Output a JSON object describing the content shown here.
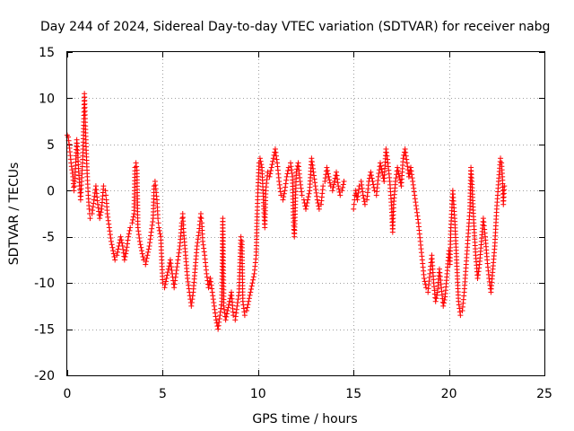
{
  "chart_data": {
    "type": "scatter",
    "title": "Day 244 of 2024, Sidereal Day-to-day VTEC variation (SDTVAR) for receiver nabg",
    "xlabel": "GPS time / hours",
    "ylabel": "SDTVAR / TECUs",
    "xlim": [
      0,
      25
    ],
    "ylim": [
      -20,
      15
    ],
    "xticks": [
      0,
      5,
      10,
      15,
      20,
      25
    ],
    "yticks": [
      -20,
      -15,
      -10,
      -5,
      0,
      5,
      10,
      15
    ],
    "xtick_labels": [
      "0",
      "5",
      "10",
      "15",
      "20",
      "25"
    ],
    "ytick_labels": [
      "-20",
      "-15",
      "-10",
      "-5",
      "0",
      "5",
      "10",
      "15"
    ],
    "grid": true,
    "marker": "+",
    "series": [
      {
        "name": "SDTVAR",
        "color": "#ff0000",
        "points": [
          [
            0.0,
            6.0
          ],
          [
            0.05,
            5.8
          ],
          [
            0.1,
            5.0
          ],
          [
            0.2,
            3.0
          ],
          [
            0.3,
            1.5
          ],
          [
            0.35,
            0.0
          ],
          [
            0.4,
            1.0
          ],
          [
            0.5,
            5.5
          ],
          [
            0.55,
            4.0
          ],
          [
            0.6,
            2.0
          ],
          [
            0.65,
            0.5
          ],
          [
            0.7,
            -1.0
          ],
          [
            0.75,
            1.0
          ],
          [
            0.8,
            3.0
          ],
          [
            0.85,
            6.0
          ],
          [
            0.88,
            8.5
          ],
          [
            0.9,
            10.5
          ],
          [
            0.92,
            9.0
          ],
          [
            0.95,
            7.0
          ],
          [
            1.0,
            4.0
          ],
          [
            1.05,
            1.5
          ],
          [
            1.1,
            -0.5
          ],
          [
            1.15,
            -2.0
          ],
          [
            1.2,
            -3.0
          ],
          [
            1.3,
            -2.5
          ],
          [
            1.4,
            -1.0
          ],
          [
            1.5,
            0.5
          ],
          [
            1.6,
            -1.5
          ],
          [
            1.7,
            -3.0
          ],
          [
            1.8,
            -2.0
          ],
          [
            1.9,
            0.5
          ],
          [
            2.0,
            0.0
          ],
          [
            2.05,
            -1.0
          ],
          [
            2.1,
            -2.5
          ],
          [
            2.2,
            -4.0
          ],
          [
            2.3,
            -5.5
          ],
          [
            2.4,
            -6.5
          ],
          [
            2.5,
            -7.5
          ],
          [
            2.6,
            -7.0
          ],
          [
            2.7,
            -6.0
          ],
          [
            2.8,
            -5.0
          ],
          [
            2.9,
            -6.0
          ],
          [
            3.0,
            -7.5
          ],
          [
            3.1,
            -6.5
          ],
          [
            3.2,
            -5.0
          ],
          [
            3.3,
            -4.0
          ],
          [
            3.4,
            -3.5
          ],
          [
            3.5,
            -2.5
          ],
          [
            3.55,
            2.5
          ],
          [
            3.6,
            3.0
          ],
          [
            3.65,
            2.2
          ],
          [
            3.7,
            -4.0
          ],
          [
            3.8,
            -5.5
          ],
          [
            3.9,
            -6.5
          ],
          [
            4.0,
            -7.5
          ],
          [
            4.1,
            -8.0
          ],
          [
            4.2,
            -7.0
          ],
          [
            4.3,
            -6.0
          ],
          [
            4.4,
            -4.5
          ],
          [
            4.5,
            -3.0
          ],
          [
            4.55,
            0.5
          ],
          [
            4.6,
            1.0
          ],
          [
            4.7,
            -1.0
          ],
          [
            4.75,
            -3.0
          ],
          [
            4.8,
            -4.0
          ],
          [
            4.9,
            -5.0
          ],
          [
            5.0,
            -10.0
          ],
          [
            5.1,
            -10.5
          ],
          [
            5.2,
            -9.5
          ],
          [
            5.3,
            -8.5
          ],
          [
            5.4,
            -7.5
          ],
          [
            5.5,
            -9.0
          ],
          [
            5.6,
            -10.5
          ],
          [
            5.7,
            -9.0
          ],
          [
            5.8,
            -7.5
          ],
          [
            5.9,
            -6.0
          ],
          [
            6.0,
            -3.5
          ],
          [
            6.05,
            -2.5
          ],
          [
            6.1,
            -4.5
          ],
          [
            6.2,
            -7.0
          ],
          [
            6.3,
            -9.5
          ],
          [
            6.4,
            -11.0
          ],
          [
            6.5,
            -12.5
          ],
          [
            6.6,
            -11.0
          ],
          [
            6.7,
            -8.5
          ],
          [
            6.8,
            -6.0
          ],
          [
            6.9,
            -4.5
          ],
          [
            7.0,
            -2.5
          ],
          [
            7.05,
            -3.5
          ],
          [
            7.1,
            -5.5
          ],
          [
            7.2,
            -7.0
          ],
          [
            7.3,
            -9.0
          ],
          [
            7.4,
            -10.5
          ],
          [
            7.5,
            -9.5
          ],
          [
            7.6,
            -11.0
          ],
          [
            7.7,
            -12.5
          ],
          [
            7.8,
            -14.0
          ],
          [
            7.9,
            -15.0
          ],
          [
            8.0,
            -13.5
          ],
          [
            8.1,
            -12.0
          ],
          [
            8.15,
            -3.0
          ],
          [
            8.2,
            -12.5
          ],
          [
            8.3,
            -14.0
          ],
          [
            8.4,
            -13.0
          ],
          [
            8.5,
            -12.0
          ],
          [
            8.6,
            -11.0
          ],
          [
            8.7,
            -13.5
          ],
          [
            8.8,
            -14.0
          ],
          [
            8.9,
            -12.5
          ],
          [
            9.0,
            -11.0
          ],
          [
            9.1,
            -5.0
          ],
          [
            9.15,
            -5.5
          ],
          [
            9.2,
            -12.0
          ],
          [
            9.3,
            -13.5
          ],
          [
            9.4,
            -13.0
          ],
          [
            9.5,
            -12.0
          ],
          [
            9.6,
            -11.0
          ],
          [
            9.7,
            -10.0
          ],
          [
            9.8,
            -9.0
          ],
          [
            9.9,
            -7.0
          ],
          [
            9.95,
            -2.5
          ],
          [
            10.0,
            0.5
          ],
          [
            10.05,
            3.0
          ],
          [
            10.1,
            3.5
          ],
          [
            10.2,
            2.5
          ],
          [
            10.3,
            -2.0
          ],
          [
            10.35,
            -4.0
          ],
          [
            10.4,
            0.0
          ],
          [
            10.5,
            2.0
          ],
          [
            10.6,
            1.5
          ],
          [
            10.7,
            2.5
          ],
          [
            10.8,
            3.5
          ],
          [
            10.9,
            4.5
          ],
          [
            11.0,
            3.0
          ],
          [
            11.1,
            1.0
          ],
          [
            11.2,
            -0.5
          ],
          [
            11.3,
            -1.0
          ],
          [
            11.4,
            0.0
          ],
          [
            11.5,
            1.5
          ],
          [
            11.6,
            2.5
          ],
          [
            11.7,
            3.0
          ],
          [
            11.8,
            1.5
          ],
          [
            11.85,
            -3.0
          ],
          [
            11.9,
            -5.0
          ],
          [
            12.0,
            2.0
          ],
          [
            12.1,
            3.0
          ],
          [
            12.2,
            1.0
          ],
          [
            12.3,
            -0.5
          ],
          [
            12.4,
            -1.0
          ],
          [
            12.5,
            -2.0
          ],
          [
            12.6,
            -1.0
          ],
          [
            12.7,
            0.0
          ],
          [
            12.8,
            3.5
          ],
          [
            12.9,
            2.0
          ],
          [
            13.0,
            0.5
          ],
          [
            13.1,
            -1.0
          ],
          [
            13.2,
            -2.0
          ],
          [
            13.3,
            -1.5
          ],
          [
            13.4,
            0.5
          ],
          [
            13.5,
            1.0
          ],
          [
            13.6,
            2.5
          ],
          [
            13.7,
            1.5
          ],
          [
            13.8,
            0.5
          ],
          [
            13.9,
            0.0
          ],
          [
            14.0,
            1.0
          ],
          [
            14.1,
            2.0
          ],
          [
            14.2,
            0.5
          ],
          [
            14.3,
            -0.5
          ],
          [
            14.4,
            0.0
          ],
          [
            14.5,
            1.0
          ],
          [
            15.0,
            -2.0
          ],
          [
            15.05,
            -1.0
          ],
          [
            15.1,
            0.0
          ],
          [
            15.2,
            -1.0
          ],
          [
            15.3,
            0.5
          ],
          [
            15.4,
            1.0
          ],
          [
            15.5,
            -0.5
          ],
          [
            15.6,
            -1.5
          ],
          [
            15.7,
            -1.0
          ],
          [
            15.8,
            1.0
          ],
          [
            15.9,
            2.0
          ],
          [
            16.0,
            1.0
          ],
          [
            16.1,
            0.0
          ],
          [
            16.2,
            -0.5
          ],
          [
            16.3,
            1.5
          ],
          [
            16.4,
            3.0
          ],
          [
            16.5,
            2.0
          ],
          [
            16.6,
            1.0
          ],
          [
            16.7,
            4.5
          ],
          [
            16.8,
            3.0
          ],
          [
            16.9,
            1.0
          ],
          [
            17.0,
            -2.0
          ],
          [
            17.05,
            -4.5
          ],
          [
            17.1,
            -1.5
          ],
          [
            17.2,
            1.0
          ],
          [
            17.3,
            2.5
          ],
          [
            17.4,
            1.5
          ],
          [
            17.5,
            0.5
          ],
          [
            17.6,
            3.5
          ],
          [
            17.7,
            4.5
          ],
          [
            17.8,
            3.0
          ],
          [
            17.9,
            1.5
          ],
          [
            18.0,
            2.5
          ],
          [
            18.1,
            1.0
          ],
          [
            18.2,
            -0.5
          ],
          [
            18.3,
            -2.0
          ],
          [
            18.4,
            -3.5
          ],
          [
            18.5,
            -5.5
          ],
          [
            18.6,
            -7.5
          ],
          [
            18.7,
            -9.5
          ],
          [
            18.8,
            -10.5
          ],
          [
            18.9,
            -11.0
          ],
          [
            19.0,
            -9.0
          ],
          [
            19.1,
            -7.0
          ],
          [
            19.2,
            -10.0
          ],
          [
            19.3,
            -12.0
          ],
          [
            19.4,
            -11.0
          ],
          [
            19.5,
            -8.5
          ],
          [
            19.6,
            -10.5
          ],
          [
            19.7,
            -12.5
          ],
          [
            19.8,
            -11.5
          ],
          [
            19.9,
            -9.0
          ],
          [
            20.0,
            -6.5
          ],
          [
            20.05,
            -8.0
          ],
          [
            20.1,
            -4.0
          ],
          [
            20.2,
            0.0
          ],
          [
            20.3,
            -3.0
          ],
          [
            20.4,
            -7.5
          ],
          [
            20.5,
            -12.0
          ],
          [
            20.6,
            -13.5
          ],
          [
            20.7,
            -13.0
          ],
          [
            20.8,
            -11.0
          ],
          [
            20.9,
            -8.0
          ],
          [
            21.0,
            -5.0
          ],
          [
            21.1,
            -2.0
          ],
          [
            21.15,
            2.5
          ],
          [
            21.2,
            1.0
          ],
          [
            21.3,
            -3.5
          ],
          [
            21.4,
            -7.0
          ],
          [
            21.5,
            -9.5
          ],
          [
            21.6,
            -8.0
          ],
          [
            21.7,
            -5.5
          ],
          [
            21.8,
            -3.0
          ],
          [
            21.9,
            -5.0
          ],
          [
            22.0,
            -7.5
          ],
          [
            22.1,
            -9.5
          ],
          [
            22.2,
            -11.0
          ],
          [
            22.3,
            -8.5
          ],
          [
            22.4,
            -6.0
          ],
          [
            22.5,
            -2.0
          ],
          [
            22.6,
            1.0
          ],
          [
            22.7,
            3.5
          ],
          [
            22.75,
            3.0
          ],
          [
            22.8,
            1.5
          ],
          [
            22.85,
            -1.5
          ],
          [
            22.9,
            0.5
          ]
        ]
      }
    ]
  }
}
